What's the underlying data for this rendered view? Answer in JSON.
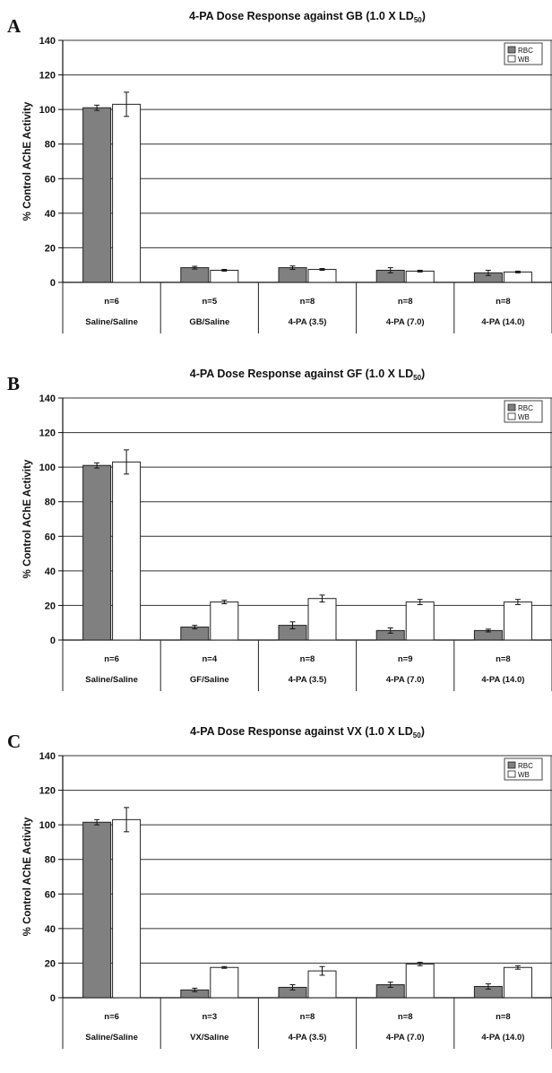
{
  "legend": [
    "RBC",
    "WB"
  ],
  "colors": {
    "rbc": "#808080",
    "wb": "#ffffff"
  },
  "chart_data": [
    {
      "type": "bar",
      "panel_letter": "A",
      "title": "4-PA Dose Response against GB (1.0 X LD",
      "title_sub": "50",
      "title_tail": ")",
      "ylabel": "% Control AChE Activity",
      "xlabel": "",
      "ylim": [
        0,
        140
      ],
      "yticks": [
        0,
        20,
        40,
        60,
        80,
        100,
        120,
        140
      ],
      "grid": true,
      "legend_position": "top-right",
      "categories": [
        "Saline/Saline",
        "GB/Saline",
        "4-PA (3.5)",
        "4-PA (7.0)",
        "4-PA (14.0)"
      ],
      "n_labels": [
        "n=6",
        "n=5",
        "n=8",
        "n=8",
        "n=8"
      ],
      "series": [
        {
          "name": "RBC",
          "values": [
            101,
            8.5,
            8.5,
            7,
            5.5
          ],
          "errors": [
            1.5,
            0.8,
            1,
            1.5,
            1.5
          ]
        },
        {
          "name": "WB",
          "values": [
            103,
            7,
            7.5,
            6.5,
            6
          ],
          "errors": [
            7,
            0.5,
            0.5,
            0.5,
            0.5
          ]
        }
      ]
    },
    {
      "type": "bar",
      "panel_letter": "B",
      "title": "4-PA Dose Response against GF (1.0 X LD",
      "title_sub": "50",
      "title_tail": ")",
      "ylabel": "% Control AChE Activity",
      "xlabel": "",
      "ylim": [
        0,
        140
      ],
      "yticks": [
        0,
        20,
        40,
        60,
        80,
        100,
        120,
        140
      ],
      "grid": true,
      "legend_position": "top-right",
      "categories": [
        "Saline/Saline",
        "GF/Saline",
        "4-PA (3.5)",
        "4-PA (7.0)",
        "4-PA (14.0)"
      ],
      "n_labels": [
        "n=6",
        "n=4",
        "n=8",
        "n=9",
        "n=8"
      ],
      "series": [
        {
          "name": "RBC",
          "values": [
            101,
            7.5,
            8.5,
            5.5,
            5.5
          ],
          "errors": [
            1.5,
            1,
            2,
            1.5,
            0.8
          ]
        },
        {
          "name": "WB",
          "values": [
            103,
            22,
            24,
            22,
            22
          ],
          "errors": [
            7,
            1,
            2,
            1.5,
            1.5
          ]
        }
      ]
    },
    {
      "type": "bar",
      "panel_letter": "C",
      "title": "4-PA Dose Response against VX (1.0 X LD",
      "title_sub": "50",
      "title_tail": ")",
      "ylabel": "% Control AChE Activity",
      "xlabel": "",
      "ylim": [
        0,
        140
      ],
      "yticks": [
        0,
        20,
        40,
        60,
        80,
        100,
        120,
        140
      ],
      "grid": true,
      "legend_position": "top-right",
      "categories": [
        "Saline/Saline",
        "VX/Saline",
        "4-PA (3.5)",
        "4-PA (7.0)",
        "4-PA (14.0)"
      ],
      "n_labels": [
        "n=6",
        "n=3",
        "n=8",
        "n=8",
        "n=8"
      ],
      "series": [
        {
          "name": "RBC",
          "values": [
            101.5,
            4.5,
            6,
            7.5,
            6.5
          ],
          "errors": [
            1.5,
            1,
            1.5,
            1.5,
            1.5
          ]
        },
        {
          "name": "WB",
          "values": [
            103,
            17.5,
            15.5,
            19.5,
            17.5
          ],
          "errors": [
            7,
            0.5,
            2.5,
            1,
            1
          ]
        }
      ]
    }
  ]
}
